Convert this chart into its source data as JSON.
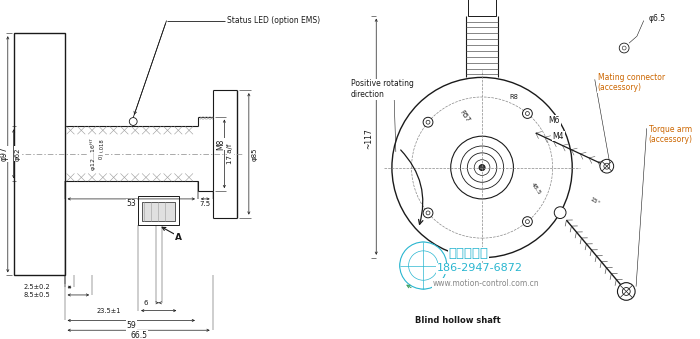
{
  "bg_color": "#ffffff",
  "lc": "#1a1a1a",
  "orange": "#cc6600",
  "cyan": "#29b6d0",
  "green": "#3a9e5f",
  "gray": "#888888",
  "darkgray": "#555555",
  "left": {
    "status_led": "Status LED (option EMS)",
    "phi97": "φ97",
    "phi62": "φ62",
    "phi12_16": "φ12...16",
    "h7_sup": "H7",
    "tol": "(+0.018\n    0)",
    "M8": "M8",
    "phi85": "φ85",
    "dim_53": "53",
    "dim_7p5": "7.5",
    "dim_17af": "17 a/f",
    "dim_2p5": "2.5±0.2",
    "dim_8p5": "8.5±0.5",
    "dim_6": "6",
    "A": "A",
    "dim_23p5": "23.5±1",
    "dim_59": "59",
    "dim_66p5": "66.5"
  },
  "right": {
    "phi6p5": "φ6.5",
    "dim_117": "~117",
    "M4": "M4",
    "M6": "M6",
    "R8": "R8",
    "R57": "R57",
    "dim_48p5": "48.5",
    "dim_15deg": "15°",
    "torque_arm": "Torque arm\n(accessory)",
    "mating_conn": "Mating connector\n(accessory)",
    "pos_rot": "Positive rotating\ndirection",
    "blind_hollow": "Blind hollow shaft"
  },
  "watermark": {
    "chinese": "西安德伍拓",
    "phone": "186-2947-6872",
    "website": "www.motion-control.com.cn"
  }
}
